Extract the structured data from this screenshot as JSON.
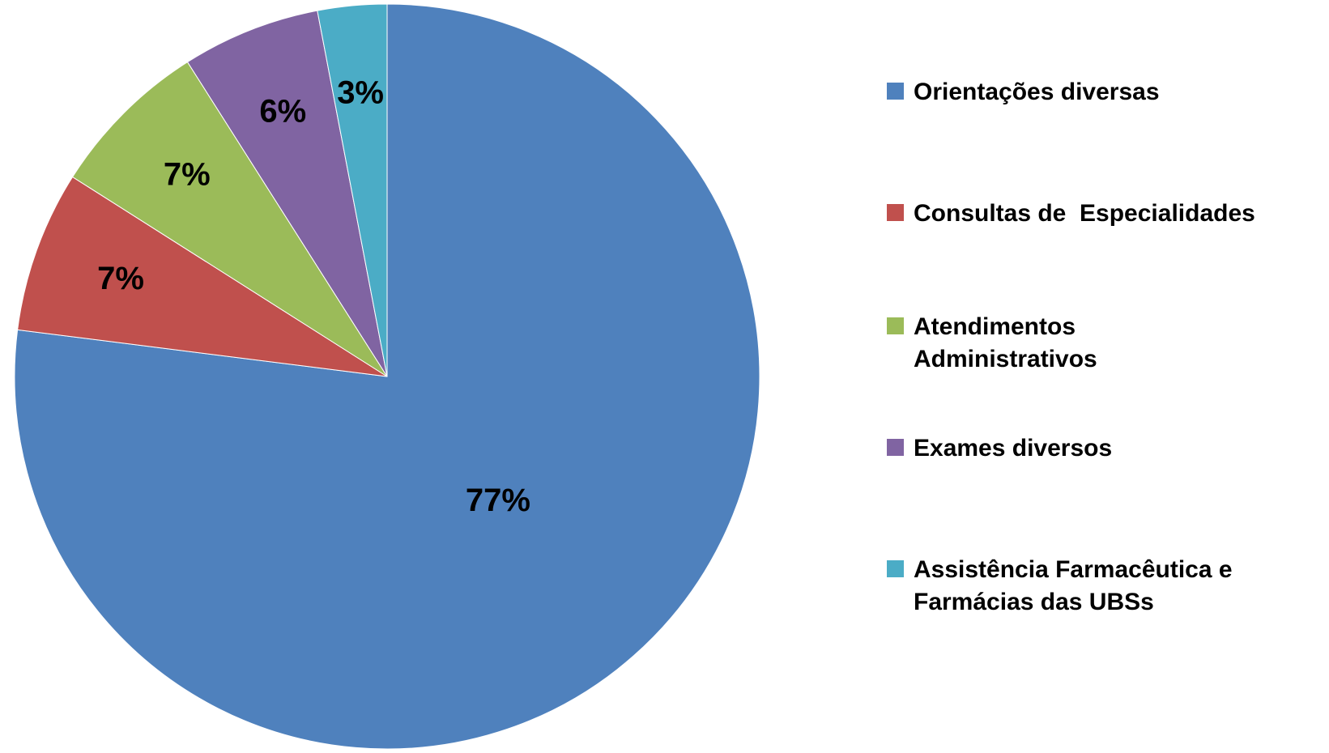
{
  "chart_data": {
    "type": "pie",
    "categories": [
      "Orientações diversas",
      "Consultas de  Especialidades",
      "Atendimentos Administrativos",
      "Exames diversos",
      "Assistência Farmacêutica e Farmácias das UBSs"
    ],
    "values": [
      77,
      7,
      7,
      6,
      3
    ],
    "value_labels": [
      "77%",
      "7%",
      "7%",
      "6%",
      "3%"
    ],
    "colors": [
      "#4f81bd",
      "#c0504d",
      "#9bbb59",
      "#8064a2",
      "#4bacc6"
    ],
    "legend": "right"
  }
}
